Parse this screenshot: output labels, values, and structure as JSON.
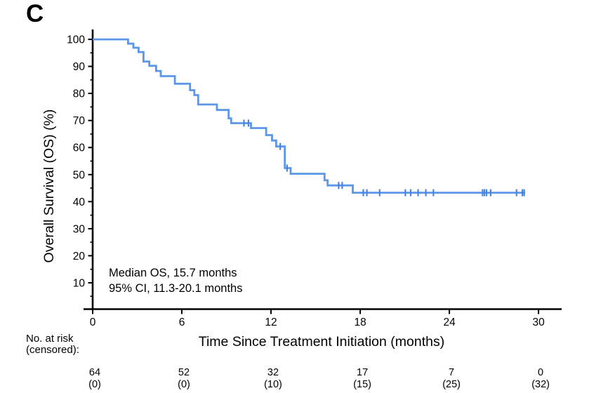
{
  "panel_label": "C",
  "colors": {
    "curve": "#5b97e8",
    "censor": "#4a86de",
    "axis": "#000000",
    "background": "#ffffff"
  },
  "chart_data": {
    "type": "line",
    "subtype": "kaplan_meier_step",
    "title": "",
    "xlabel": "Time Since Treatment Initiation (months)",
    "ylabel": "Overall Survival (OS) (%)",
    "xlim": [
      0,
      31.5
    ],
    "ylim": [
      0,
      105
    ],
    "grid": false,
    "legend": "none",
    "x_ticks": [
      0,
      6,
      12,
      18,
      24,
      30
    ],
    "y_ticks": [
      10,
      20,
      30,
      40,
      50,
      60,
      70,
      80,
      90,
      100
    ],
    "y_minor_ticks": [
      5,
      15,
      25,
      35,
      45,
      55,
      65,
      75,
      85,
      95
    ],
    "median_os_months": 15.7,
    "ci_95_months": "11.3-20.1",
    "annotation": {
      "line1": "Median OS, 15.7 months",
      "line2": "95% CI, 11.3-20.1 months"
    },
    "series": [
      {
        "name": "Overall Survival (OS)",
        "steps_month_percent": [
          [
            0,
            100
          ],
          [
            2.38,
            98.4
          ],
          [
            2.74,
            96.9
          ],
          [
            3.09,
            95.3
          ],
          [
            3.42,
            91.8
          ],
          [
            3.81,
            90.2
          ],
          [
            4.27,
            88.3
          ],
          [
            4.58,
            86.4
          ],
          [
            5.53,
            83.6
          ],
          [
            6.55,
            81.2
          ],
          [
            6.84,
            79.4
          ],
          [
            7.1,
            75.9
          ],
          [
            8.36,
            73.9
          ],
          [
            9.15,
            70.8
          ],
          [
            9.32,
            69.0
          ],
          [
            10.65,
            67.2
          ],
          [
            11.67,
            64.6
          ],
          [
            12.07,
            62.6
          ],
          [
            12.35,
            60.4
          ],
          [
            12.93,
            52.4
          ],
          [
            13.32,
            50.3
          ],
          [
            15.6,
            47.9
          ],
          [
            15.81,
            46.0
          ],
          [
            17.5,
            43.3
          ]
        ],
        "curve_end_month": 29.1,
        "censor_marks_month_percent": [
          [
            10.18,
            69.0
          ],
          [
            10.48,
            69.0
          ],
          [
            12.62,
            60.4
          ],
          [
            13.08,
            52.4
          ],
          [
            16.55,
            46.0
          ],
          [
            16.79,
            46.0
          ],
          [
            18.21,
            43.3
          ],
          [
            18.45,
            43.3
          ],
          [
            19.31,
            43.3
          ],
          [
            21.04,
            43.3
          ],
          [
            21.4,
            43.3
          ],
          [
            21.9,
            43.3
          ],
          [
            22.42,
            43.3
          ],
          [
            22.93,
            43.3
          ],
          [
            26.23,
            43.3
          ],
          [
            26.36,
            43.3
          ],
          [
            26.5,
            43.3
          ],
          [
            26.78,
            43.3
          ],
          [
            28.52,
            43.3
          ],
          [
            28.91,
            43.3
          ],
          [
            29.03,
            43.3
          ]
        ]
      }
    ],
    "at_risk_table": {
      "label_line1": "No. at risk",
      "label_line2": "(censored):",
      "months": [
        0,
        6,
        12,
        18,
        24,
        30
      ],
      "at_risk": [
        "64",
        "52",
        "32",
        "17",
        "7",
        "0"
      ],
      "censored": [
        "(0)",
        "(0)",
        "(10)",
        "(15)",
        "(25)",
        "(32)"
      ]
    }
  }
}
